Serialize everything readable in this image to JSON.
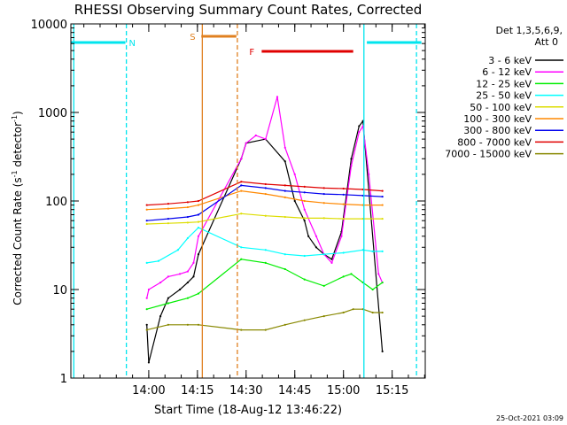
{
  "chart_data": {
    "type": "line",
    "title": "RHESSI Observing Summary Count Rates, Corrected",
    "xlabel": "Start Time (18-Aug-12 13:46:22)",
    "ylabel": "Corrected Count Rate (s⁻¹ detector⁻¹)",
    "ylabel_main": "Corrected Count Rate (s",
    "ylabel_sup1": "-1",
    "ylabel_mid": " detector",
    "ylabel_sup2": "-1",
    "ylabel_end": ")",
    "yscale": "log",
    "ylim": [
      1,
      10000
    ],
    "xlim_minutes": [
      13.6,
      15.42
    ],
    "y_ticks": [
      {
        "value": 1,
        "label": "1"
      },
      {
        "value": 10,
        "label": "10"
      },
      {
        "value": 100,
        "label": "100"
      },
      {
        "value": 1000,
        "label": "1000"
      },
      {
        "value": 10000,
        "label": "10000"
      }
    ],
    "x_ticks": [
      {
        "value": 14.0,
        "label": "14:00"
      },
      {
        "value": 14.25,
        "label": "14:15"
      },
      {
        "value": 14.5,
        "label": "14:30"
      },
      {
        "value": 14.75,
        "label": "14:45"
      },
      {
        "value": 15.0,
        "label": "15:00"
      },
      {
        "value": 15.25,
        "label": "15:15"
      }
    ],
    "legend_header": [
      "Det 1,3,5,6,9,",
      "Att 0"
    ],
    "legend_position": "right",
    "timestamp": "25-Oct-2021 03:09",
    "flags": [
      {
        "label": "N",
        "color": "#00e5ee",
        "segments": [
          [
            13.6,
            13.88
          ],
          [
            15.12,
            15.4
          ]
        ]
      },
      {
        "label": "S",
        "color": "#e08020",
        "segments": [
          [
            14.27,
            14.45
          ]
        ]
      },
      {
        "label": "F",
        "color": "#e00000",
        "segments": [
          [
            14.58,
            15.05
          ]
        ]
      }
    ],
    "vlines": [
      {
        "x": 13.615,
        "color": "#00e5ee",
        "style": "solid"
      },
      {
        "x": 13.885,
        "color": "#00e5ee",
        "style": "dashed"
      },
      {
        "x": 14.275,
        "color": "#e08020",
        "style": "solid"
      },
      {
        "x": 14.455,
        "color": "#e08020",
        "style": "dashed"
      },
      {
        "x": 15.105,
        "color": "#00e5ee",
        "style": "solid"
      },
      {
        "x": 15.375,
        "color": "#00e5ee",
        "style": "dashed"
      }
    ],
    "series": [
      {
        "name": "3 - 6 keV",
        "color": "#000000",
        "x": [
          13.99,
          14.0,
          14.06,
          14.1,
          14.16,
          14.2,
          14.23,
          14.255,
          14.475,
          14.5,
          14.6,
          14.7,
          14.75,
          14.8,
          14.82,
          14.86,
          14.9,
          14.94,
          14.99,
          15.04,
          15.08,
          15.1,
          15.2
        ],
        "y": [
          4,
          1.5,
          5,
          8,
          10,
          12,
          14,
          25,
          300,
          450,
          500,
          280,
          100,
          60,
          40,
          30,
          25,
          22,
          45,
          300,
          700,
          800,
          2
        ]
      },
      {
        "name": "6 - 12 keV",
        "color": "#ff00ff",
        "x": [
          13.99,
          14.0,
          14.06,
          14.1,
          14.16,
          14.2,
          14.23,
          14.255,
          14.475,
          14.5,
          14.55,
          14.6,
          14.66,
          14.7,
          14.75,
          14.8,
          14.86,
          14.9,
          14.94,
          14.99,
          15.04,
          15.08,
          15.1,
          15.13,
          15.18,
          15.2
        ],
        "y": [
          8,
          10,
          12,
          14,
          15,
          16,
          20,
          40,
          300,
          450,
          550,
          500,
          1500,
          400,
          200,
          80,
          40,
          25,
          20,
          40,
          250,
          600,
          700,
          200,
          15,
          12
        ]
      },
      {
        "name": "12 - 25 keV",
        "color": "#00ee00",
        "x": [
          13.99,
          14.1,
          14.2,
          14.255,
          14.475,
          14.6,
          14.7,
          14.8,
          14.9,
          15.0,
          15.04,
          15.1,
          15.15,
          15.2
        ],
        "y": [
          6,
          7,
          8,
          9,
          22,
          20,
          17,
          13,
          11,
          14,
          15,
          12,
          10,
          12
        ]
      },
      {
        "name": "25 - 50 keV",
        "color": "#00ffff",
        "x": [
          13.99,
          14.05,
          14.15,
          14.2,
          14.255,
          14.475,
          14.6,
          14.7,
          14.8,
          14.9,
          15.0,
          15.1,
          15.15,
          15.2
        ],
        "y": [
          20,
          21,
          28,
          38,
          50,
          30,
          28,
          25,
          24,
          25,
          26,
          28,
          27,
          27
        ]
      },
      {
        "name": "50 - 100 keV",
        "color": "#dddd00",
        "x": [
          13.99,
          14.1,
          14.2,
          14.255,
          14.475,
          14.6,
          14.7,
          14.8,
          14.9,
          15.0,
          15.1,
          15.2
        ],
        "y": [
          55,
          56,
          57,
          58,
          72,
          68,
          66,
          64,
          64,
          63,
          63,
          63
        ]
      },
      {
        "name": "100 - 300 keV",
        "color": "#ff8800",
        "x": [
          13.99,
          14.1,
          14.2,
          14.255,
          14.475,
          14.6,
          14.7,
          14.8,
          14.9,
          15.0,
          15.1,
          15.2
        ],
        "y": [
          80,
          82,
          85,
          90,
          130,
          120,
          110,
          100,
          95,
          92,
          90,
          90
        ]
      },
      {
        "name": "300 - 800 keV",
        "color": "#0000ee",
        "x": [
          13.99,
          14.1,
          14.2,
          14.255,
          14.475,
          14.6,
          14.7,
          14.8,
          14.9,
          15.0,
          15.1,
          15.2
        ],
        "y": [
          60,
          63,
          66,
          70,
          150,
          140,
          130,
          125,
          120,
          118,
          115,
          112
        ]
      },
      {
        "name": "800 - 7000 keV",
        "color": "#e00000",
        "x": [
          13.99,
          14.1,
          14.2,
          14.255,
          14.475,
          14.6,
          14.7,
          14.8,
          14.9,
          15.0,
          15.1,
          15.2
        ],
        "y": [
          90,
          93,
          97,
          100,
          165,
          155,
          150,
          145,
          140,
          138,
          135,
          130
        ]
      },
      {
        "name": "7000 - 15000 keV",
        "color": "#888800",
        "x": [
          13.99,
          14.1,
          14.2,
          14.255,
          14.475,
          14.6,
          14.7,
          14.8,
          14.9,
          15.0,
          15.05,
          15.1,
          15.15,
          15.2
        ],
        "y": [
          3.5,
          4,
          4,
          4,
          3.5,
          3.5,
          4,
          4.5,
          5,
          5.5,
          6,
          6,
          5.5,
          5.5
        ]
      }
    ]
  }
}
